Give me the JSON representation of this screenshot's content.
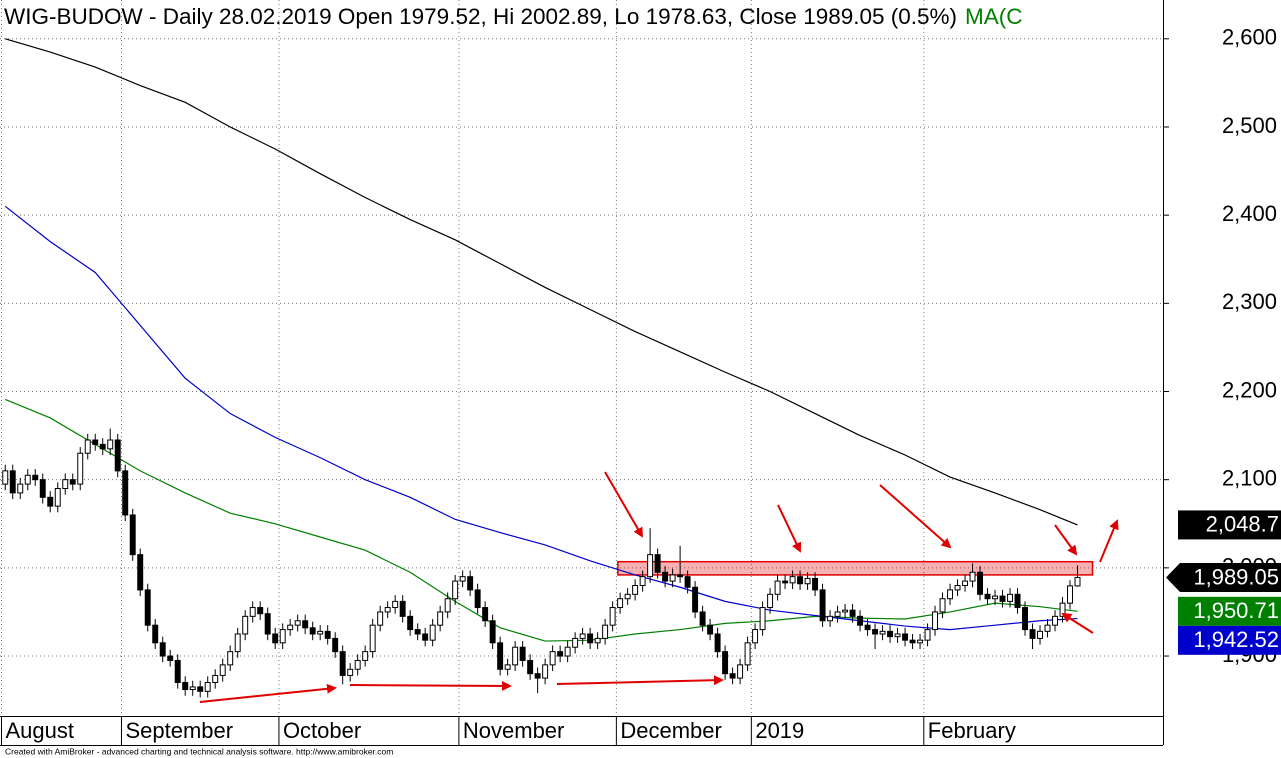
{
  "chart_data": {
    "type": "candlestick",
    "title": "WIG-BUDOW - Daily 28.02.2019 Open 1979.52, Hi 2002.89, Lo 1978.63, Close 1989.05 (0.5%)",
    "title_suffix": "MA(C",
    "title_suffix_color": "#008000",
    "footer": "Created with AmiBroker - advanced charting and technical analysis software. http://www.amibroker.com",
    "candles": {
      "open": [
        2095,
        2110,
        2085,
        2095,
        2105,
        2100,
        2080,
        2070,
        2090,
        2100,
        2095,
        2130,
        2145,
        2140,
        2135,
        2145,
        2110,
        2060,
        2015,
        1975,
        1935,
        1915,
        1900,
        1895,
        1870,
        1862,
        1865,
        1860,
        1870,
        1878,
        1890,
        1905,
        1925,
        1945,
        1955,
        1948,
        1925,
        1915,
        1930,
        1935,
        1940,
        1932,
        1925,
        1928,
        1920,
        1905,
        1878,
        1885,
        1895,
        1905,
        1935,
        1950,
        1955,
        1962,
        1945,
        1930,
        1925,
        1918,
        1935,
        1950,
        1965,
        1985,
        1990,
        1975,
        1955,
        1940,
        1915,
        1885,
        1890,
        1910,
        1895,
        1880,
        1875,
        1890,
        1905,
        1900,
        1910,
        1920,
        1925,
        1915,
        1920,
        1935,
        1955,
        1965,
        1970,
        1980,
        1990,
        2015,
        1995,
        1985,
        1992,
        1990,
        1978,
        1950,
        1935,
        1925,
        1905,
        1880,
        1875,
        1890,
        1915,
        1930,
        1955,
        1970,
        1985,
        1983,
        1990,
        1982,
        1988,
        1975,
        1940,
        1945,
        1950,
        1952,
        1945,
        1935,
        1930,
        1925,
        1928,
        1922,
        1925,
        1918,
        1915,
        1918,
        1930,
        1950,
        1965,
        1975,
        1980,
        1985,
        1995,
        1970,
        1965,
        1968,
        1962,
        1970,
        1955,
        1930,
        1920,
        1928,
        1935,
        1945,
        1960,
        1979.52
      ],
      "high": [
        2117,
        2117,
        2102,
        2112,
        2112,
        2107,
        2087,
        2097,
        2107,
        2107,
        2137,
        2152,
        2152,
        2147,
        2158,
        2152,
        2117,
        2067,
        2022,
        1982,
        1942,
        1922,
        1907,
        1902,
        1877,
        1872,
        1872,
        1877,
        1885,
        1897,
        1912,
        1932,
        1952,
        1962,
        1962,
        1955,
        1932,
        1937,
        1942,
        1947,
        1947,
        1939,
        1935,
        1935,
        1927,
        1912,
        1892,
        1902,
        1912,
        1942,
        1957,
        1962,
        1969,
        1969,
        1952,
        1937,
        1932,
        1942,
        1957,
        1972,
        1992,
        1997,
        1997,
        1982,
        1962,
        1947,
        1922,
        1897,
        1917,
        1917,
        1902,
        1887,
        1897,
        1912,
        1912,
        1917,
        1927,
        1932,
        1932,
        1927,
        1942,
        1962,
        1972,
        1977,
        1987,
        1997,
        2045,
        2022,
        2002,
        1999,
        2025,
        1997,
        1985,
        1957,
        1942,
        1932,
        1912,
        1887,
        1897,
        1922,
        1937,
        1962,
        1977,
        1992,
        1992,
        1997,
        1997,
        1995,
        1995,
        1982,
        1952,
        1957,
        1959,
        1959,
        1952,
        1942,
        1937,
        1935,
        1935,
        1932,
        1932,
        1925,
        1925,
        1937,
        1957,
        1972,
        1982,
        1987,
        1992,
        2005,
        2002,
        1977,
        1975,
        1975,
        1977,
        1977,
        1962,
        1937,
        1935,
        1942,
        1952,
        1967,
        1986,
        2002.89
      ],
      "low": [
        2088,
        2078,
        2078,
        2088,
        2093,
        2073,
        2063,
        2063,
        2083,
        2088,
        2088,
        2123,
        2133,
        2128,
        2128,
        2103,
        2053,
        2008,
        1968,
        1928,
        1908,
        1893,
        1888,
        1863,
        1855,
        1855,
        1853,
        1853,
        1863,
        1871,
        1883,
        1898,
        1918,
        1938,
        1941,
        1918,
        1908,
        1908,
        1923,
        1928,
        1925,
        1918,
        1918,
        1913,
        1898,
        1868,
        1871,
        1878,
        1888,
        1898,
        1928,
        1943,
        1948,
        1938,
        1923,
        1918,
        1911,
        1911,
        1928,
        1943,
        1958,
        1978,
        1968,
        1948,
        1933,
        1908,
        1878,
        1878,
        1883,
        1888,
        1873,
        1858,
        1868,
        1883,
        1893,
        1893,
        1903,
        1913,
        1908,
        1908,
        1913,
        1928,
        1948,
        1958,
        1963,
        1973,
        1983,
        1988,
        1978,
        1978,
        1983,
        1971,
        1943,
        1928,
        1918,
        1898,
        1873,
        1868,
        1868,
        1883,
        1908,
        1923,
        1948,
        1963,
        1976,
        1976,
        1975,
        1975,
        1968,
        1933,
        1933,
        1938,
        1943,
        1938,
        1928,
        1923,
        1908,
        1918,
        1915,
        1915,
        1911,
        1908,
        1908,
        1911,
        1923,
        1943,
        1958,
        1968,
        1973,
        1978,
        1963,
        1958,
        1958,
        1955,
        1955,
        1948,
        1923,
        1908,
        1913,
        1921,
        1928,
        1938,
        1953,
        1978.63
      ],
      "close": [
        2110,
        2085,
        2095,
        2105,
        2100,
        2080,
        2070,
        2090,
        2100,
        2095,
        2130,
        2145,
        2140,
        2135,
        2145,
        2110,
        2060,
        2015,
        1975,
        1935,
        1915,
        1900,
        1895,
        1870,
        1862,
        1865,
        1860,
        1870,
        1878,
        1890,
        1905,
        1925,
        1945,
        1955,
        1948,
        1925,
        1915,
        1930,
        1935,
        1940,
        1932,
        1925,
        1928,
        1920,
        1905,
        1878,
        1885,
        1895,
        1905,
        1935,
        1950,
        1955,
        1962,
        1945,
        1930,
        1925,
        1918,
        1935,
        1950,
        1965,
        1985,
        1990,
        1975,
        1955,
        1940,
        1915,
        1885,
        1890,
        1910,
        1895,
        1880,
        1875,
        1890,
        1905,
        1900,
        1910,
        1920,
        1925,
        1915,
        1920,
        1935,
        1955,
        1965,
        1970,
        1980,
        1990,
        2015,
        1995,
        1985,
        1992,
        1990,
        1978,
        1950,
        1935,
        1925,
        1905,
        1880,
        1875,
        1890,
        1915,
        1930,
        1955,
        1970,
        1985,
        1983,
        1990,
        1982,
        1988,
        1975,
        1940,
        1945,
        1950,
        1952,
        1945,
        1935,
        1930,
        1925,
        1928,
        1922,
        1925,
        1918,
        1915,
        1918,
        1930,
        1950,
        1965,
        1975,
        1980,
        1985,
        1995,
        1970,
        1965,
        1968,
        1962,
        1970,
        1955,
        1930,
        1920,
        1928,
        1935,
        1945,
        1960,
        1979.52,
        1989.05
      ],
      "up_color": "#ffffff",
      "down_color": "#000000",
      "last_close_label": "1,989.05",
      "label_color": "#000000"
    },
    "series": [
      {
        "color": "#000000",
        "last_value_label": "2,048.7",
        "x": [
          0,
          6,
          12,
          18,
          24,
          30,
          36,
          42,
          48,
          54,
          60,
          66,
          72,
          78,
          84,
          90,
          96,
          102,
          108,
          114,
          120,
          126,
          132,
          138,
          143
        ],
        "values": [
          2600,
          2585,
          2568,
          2547,
          2528,
          2500,
          2475,
          2447,
          2420,
          2395,
          2372,
          2345,
          2318,
          2293,
          2268,
          2245,
          2222,
          2200,
          2175,
          2150,
          2128,
          2103,
          2085,
          2066,
          2048.7
        ]
      },
      {
        "color": "#008000",
        "last_value_label": "1,950.71",
        "x": [
          0,
          6,
          12,
          18,
          24,
          30,
          36,
          42,
          48,
          54,
          60,
          66,
          72,
          78,
          84,
          90,
          96,
          102,
          108,
          114,
          120,
          126,
          132,
          138,
          143
        ],
        "values": [
          2191,
          2170,
          2140,
          2110,
          2085,
          2062,
          2050,
          2035,
          2020,
          1995,
          1962,
          1932,
          1917,
          1918,
          1925,
          1930,
          1937,
          1940,
          1945,
          1943,
          1942,
          1950,
          1960,
          1956,
          1950.71
        ]
      },
      {
        "color": "#0000cc",
        "last_value_label": "1,942.52",
        "x": [
          0,
          6,
          12,
          18,
          24,
          30,
          36,
          42,
          48,
          54,
          60,
          66,
          72,
          78,
          84,
          90,
          96,
          102,
          108,
          114,
          120,
          126,
          132,
          138,
          143
        ],
        "values": [
          2410,
          2370,
          2335,
          2275,
          2215,
          2175,
          2148,
          2125,
          2100,
          2080,
          2055,
          2040,
          2026,
          2008,
          1992,
          1978,
          1962,
          1952,
          1946,
          1940,
          1934,
          1930,
          1935,
          1940,
          1942.52
        ]
      }
    ],
    "resistance_zone": {
      "x": [
        81.7,
        145
      ],
      "y": [
        1992,
        2007
      ],
      "color": "#e00000"
    },
    "xlim": [
      -0.7,
      154.4
    ],
    "xticks": [
      {
        "value": 0,
        "label": "August"
      },
      {
        "value": 16,
        "label": "September"
      },
      {
        "value": 37,
        "label": "October"
      },
      {
        "value": 61,
        "label": "November"
      },
      {
        "value": 82,
        "label": "December"
      },
      {
        "value": 100,
        "label": "2019"
      },
      {
        "value": 123,
        "label": "February"
      }
    ],
    "ylim": [
      1832,
      2644
    ],
    "yticks": [
      {
        "value": 1900,
        "label": "1,900"
      },
      {
        "value": 2000,
        "label": "2,000"
      },
      {
        "value": 2100,
        "label": "2,100"
      },
      {
        "value": 2200,
        "label": "2,200"
      },
      {
        "value": 2300,
        "label": "2,300"
      },
      {
        "value": 2400,
        "label": "2,400"
      },
      {
        "value": 2500,
        "label": "2,500"
      },
      {
        "value": 2600,
        "label": "2,600"
      }
    ],
    "grid": true
  }
}
